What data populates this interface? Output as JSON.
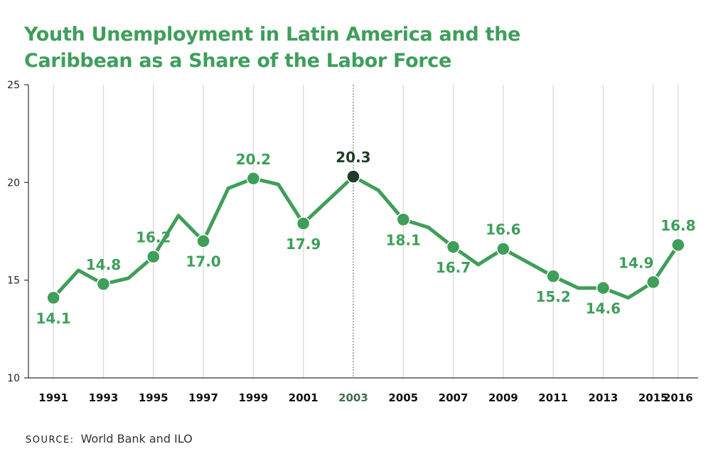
{
  "title": {
    "line1": "Youth Unemployment in Latin America and the",
    "line2": "Caribbean as a Share of the Labor Force"
  },
  "source": {
    "label": "SOURCE:",
    "text": "World Bank and ILO"
  },
  "colors": {
    "line": "#3f9e5a",
    "label": "#3f9e5a",
    "highlight": "#1f3d28",
    "grid": "#dcdcdc",
    "axis": "#333333",
    "highlight_line": "#3f6e4c"
  },
  "chart_data": {
    "type": "line",
    "title": "Youth Unemployment in Latin America and the Caribbean as a Share of the Labor Force",
    "xlabel": "",
    "ylabel": "",
    "ylim": [
      10,
      25
    ],
    "yticks": [
      10,
      15,
      20,
      25
    ],
    "xlim": [
      1990,
      2016.8
    ],
    "xticks": [
      "1991",
      "1993",
      "1995",
      "1997",
      "1999",
      "2001",
      "2003",
      "2005",
      "2007",
      "2009",
      "2011",
      "2013",
      "2015",
      "2016"
    ],
    "grid": true,
    "highlight": "2003",
    "series": [
      {
        "x": [
          1991,
          1992,
          1993,
          1994,
          1995,
          1996,
          1997,
          1998,
          1999,
          2000,
          2001,
          2002,
          2003,
          2004,
          2005,
          2006,
          2007,
          2008,
          2009,
          2010,
          2011,
          2012,
          2013,
          2014,
          2015,
          2016
        ],
        "values": [
          14.1,
          15.5,
          14.8,
          15.1,
          16.2,
          18.3,
          17.0,
          19.7,
          20.2,
          19.9,
          17.9,
          19.1,
          20.3,
          19.6,
          18.1,
          17.7,
          16.7,
          15.8,
          16.6,
          15.9,
          15.2,
          14.6,
          14.6,
          14.1,
          14.9,
          16.8
        ]
      }
    ],
    "markers": [
      {
        "x": 1991,
        "y": 14.1,
        "label": "14.1",
        "pos": "below"
      },
      {
        "x": 1993,
        "y": 14.8,
        "label": "14.8",
        "pos": "above"
      },
      {
        "x": 1995,
        "y": 16.2,
        "label": "16.2",
        "pos": "above"
      },
      {
        "x": 1997,
        "y": 17.0,
        "label": "17.0",
        "pos": "below"
      },
      {
        "x": 1999,
        "y": 20.2,
        "label": "20.2",
        "pos": "above"
      },
      {
        "x": 2001,
        "y": 17.9,
        "label": "17.9",
        "pos": "below"
      },
      {
        "x": 2003,
        "y": 20.3,
        "label": "20.3",
        "pos": "above"
      },
      {
        "x": 2005,
        "y": 18.1,
        "label": "18.1",
        "pos": "below"
      },
      {
        "x": 2007,
        "y": 16.7,
        "label": "16.7",
        "pos": "below"
      },
      {
        "x": 2009,
        "y": 16.6,
        "label": "16.6",
        "pos": "above"
      },
      {
        "x": 2011,
        "y": 15.2,
        "label": "15.2",
        "pos": "below"
      },
      {
        "x": 2013,
        "y": 14.6,
        "label": "14.6",
        "pos": "below"
      },
      {
        "x": 2015,
        "y": 14.9,
        "label": "14.9",
        "pos": "above-left"
      },
      {
        "x": 2016,
        "y": 16.8,
        "label": "16.8",
        "pos": "above"
      }
    ]
  }
}
